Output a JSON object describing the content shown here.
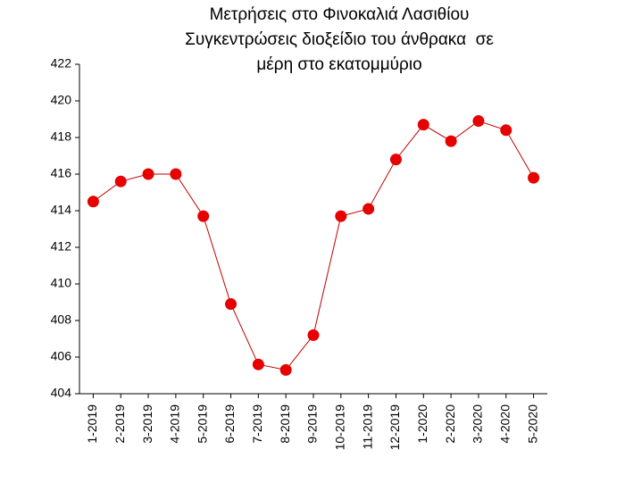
{
  "chart_data": {
    "type": "line",
    "title": [
      "Μετρήσεις στο Φινοκαλιά Λασιθίου",
      "Συγκεντρώσεις διοξείδιο του άνθρακα  σε",
      "μέρη στο εκατομμύριο"
    ],
    "categories": [
      "1-2019",
      "2-2019",
      "3-2019",
      "4-2019",
      "5-2019",
      "6-2019",
      "7-2019",
      "8-2019",
      "9-2019",
      "10-2019",
      "11-2019",
      "12-2019",
      "1-2020",
      "2-2020",
      "3-2020",
      "4-2020",
      "5-2020"
    ],
    "values": [
      414.5,
      415.6,
      416.0,
      416.0,
      413.7,
      408.9,
      405.6,
      405.3,
      407.2,
      413.7,
      414.1,
      416.8,
      418.7,
      417.8,
      418.9,
      418.4,
      415.8
    ],
    "line_color": "#c00000",
    "marker_color": "#e60000",
    "ylim": [
      404,
      422
    ],
    "yticks": [
      404,
      406,
      408,
      410,
      412,
      414,
      416,
      418,
      420,
      422
    ]
  }
}
